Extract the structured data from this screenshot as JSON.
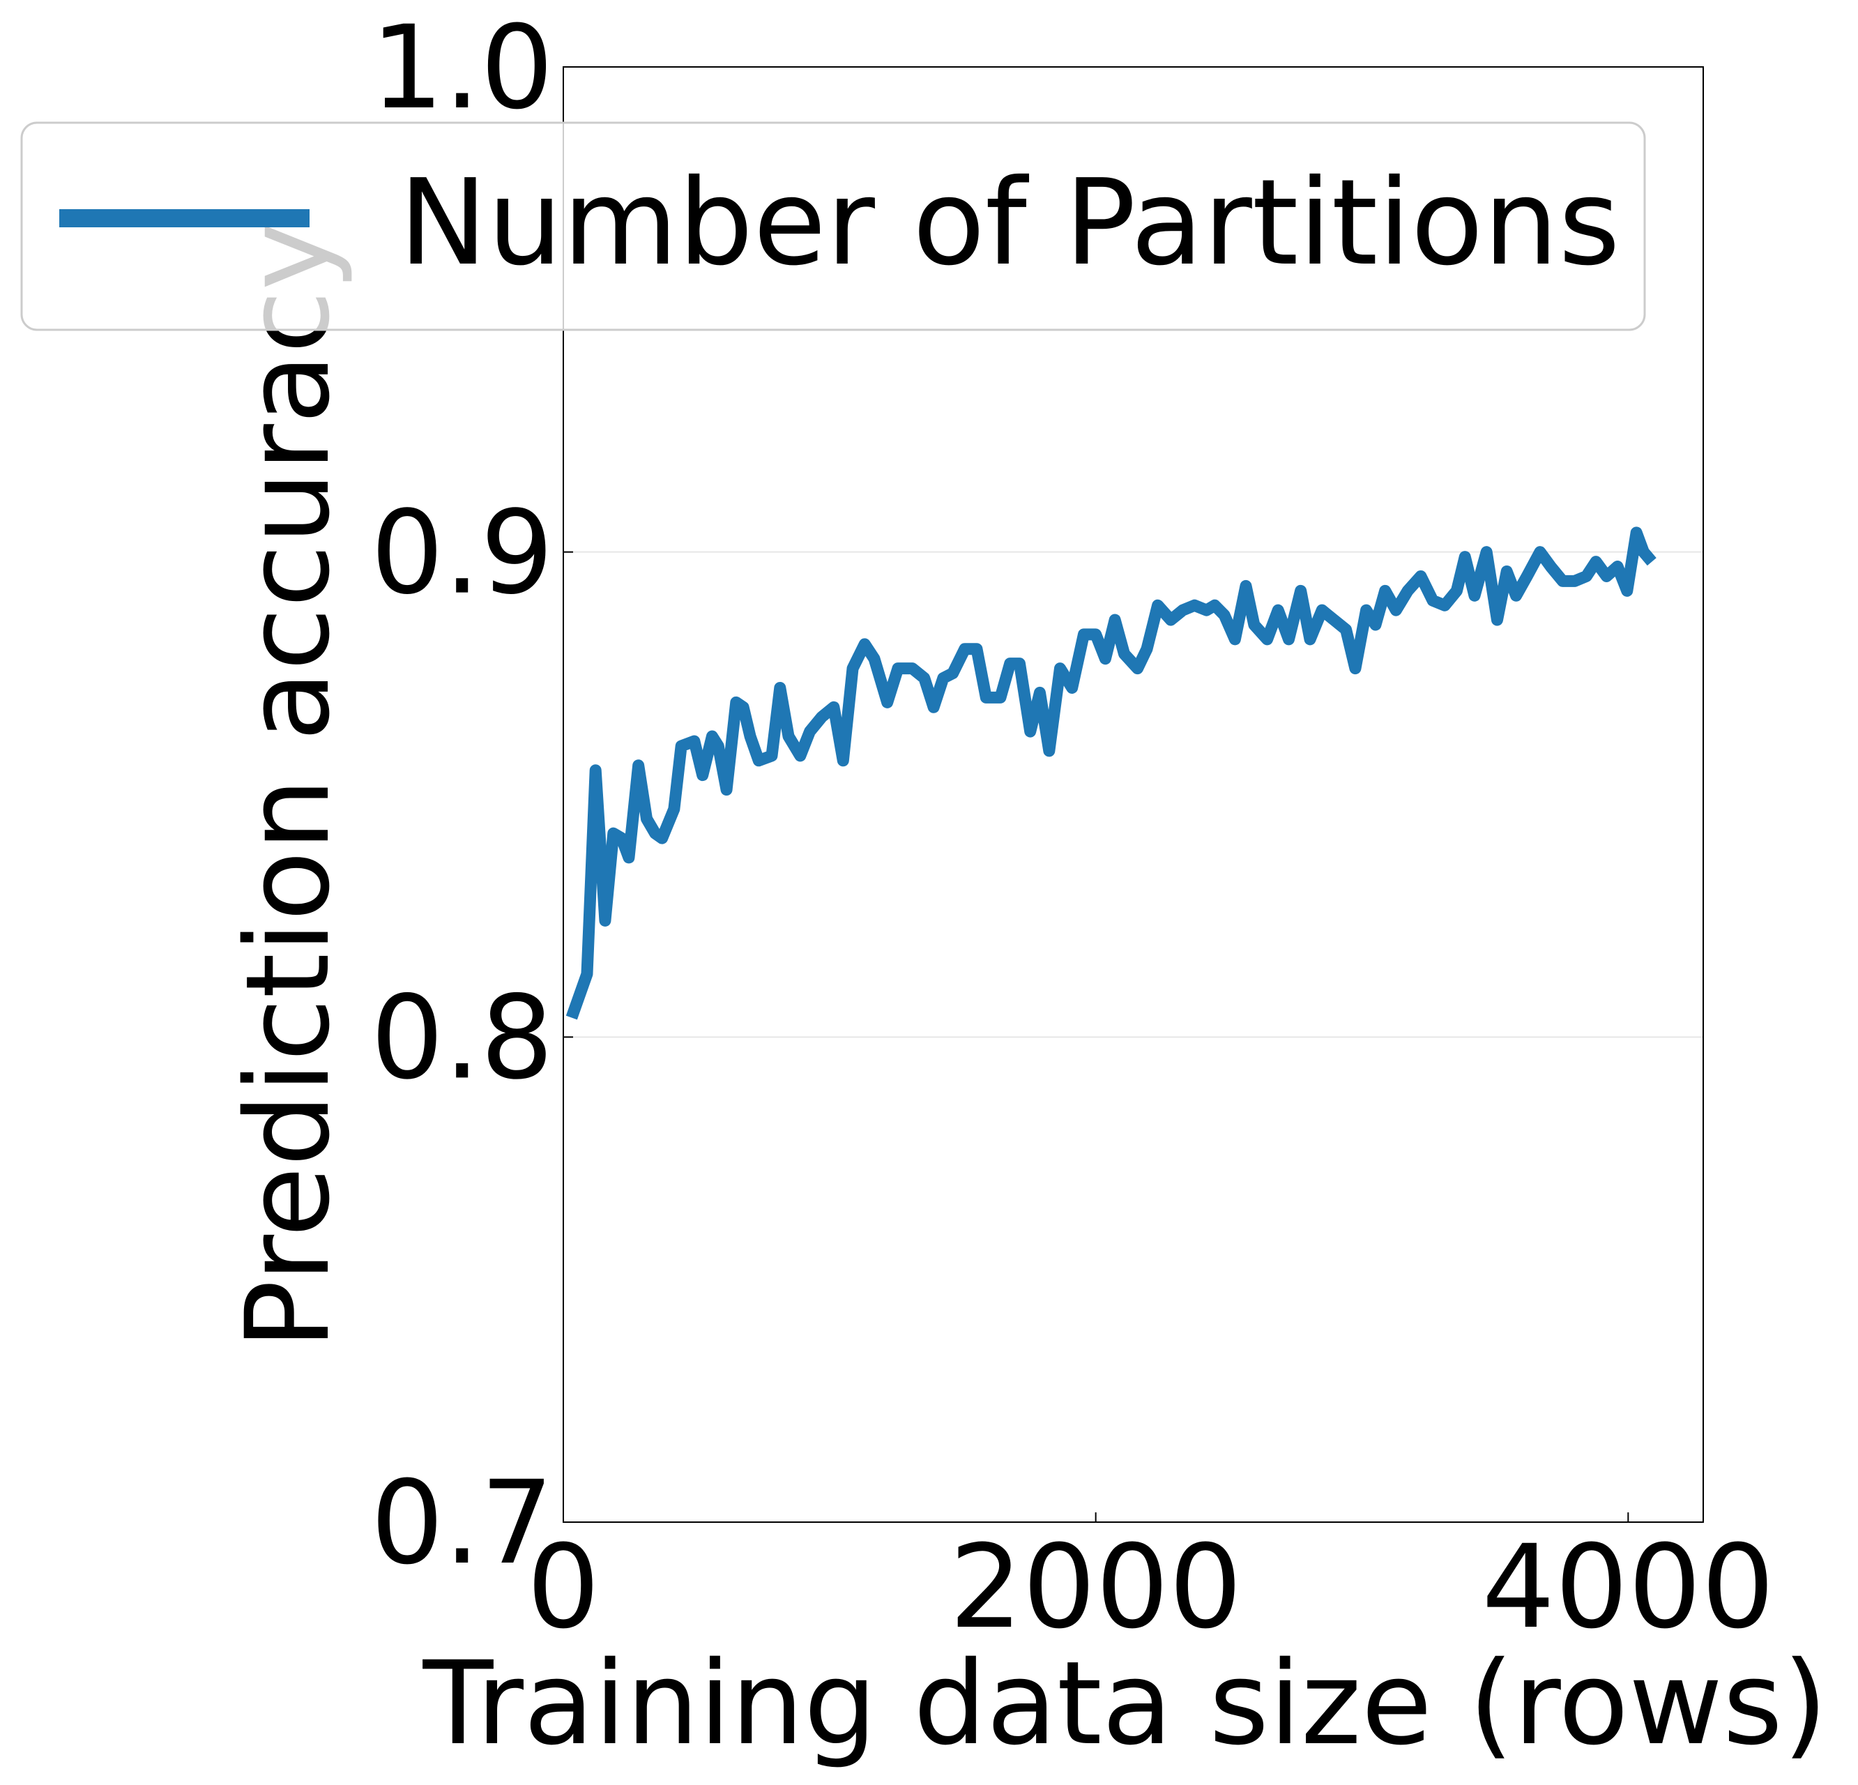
{
  "chart_data": {
    "type": "line",
    "xlabel": "Training data size (rows)",
    "ylabel": "Prediction accuracy",
    "x": [
      31,
      89,
      121,
      157,
      188,
      219,
      246,
      282,
      313,
      345,
      371,
      416,
      443,
      492,
      523,
      559,
      582,
      613,
      649,
      676,
      702,
      734,
      783,
      814,
      846,
      890,
      926,
      971,
      1016,
      1051,
      1087,
      1132,
      1168,
      1217,
      1257,
      1311,
      1356,
      1391,
      1427,
      1463,
      1508,
      1553,
      1588,
      1642,
      1678,
      1714,
      1754,
      1790,
      1825,
      1866,
      1911,
      1955,
      2000,
      2036,
      2072,
      2107,
      2157,
      2192,
      2233,
      2282,
      2327,
      2371,
      2416,
      2447,
      2483,
      2523,
      2564,
      2595,
      2644,
      2685,
      2725,
      2770,
      2805,
      2850,
      2895,
      2940,
      2975,
      3016,
      3051,
      3087,
      3128,
      3172,
      3221,
      3266,
      3311,
      3356,
      3387,
      3423,
      3468,
      3508,
      3544,
      3579,
      3620,
      3669,
      3709,
      3754,
      3799,
      3843,
      3879,
      3919,
      3960,
      3996,
      4031,
      4058,
      4089
    ],
    "series": [
      {
        "name": "Number of Partitions",
        "color": "#1f77b4",
        "values": [
          0.804,
          0.813,
          0.855,
          0.824,
          0.842,
          0.841,
          0.837,
          0.856,
          0.845,
          0.842,
          0.841,
          0.847,
          0.86,
          0.861,
          0.854,
          0.862,
          0.86,
          0.851,
          0.869,
          0.868,
          0.862,
          0.857,
          0.858,
          0.872,
          0.862,
          0.858,
          0.863,
          0.866,
          0.868,
          0.857,
          0.876,
          0.881,
          0.878,
          0.869,
          0.876,
          0.876,
          0.874,
          0.868,
          0.874,
          0.875,
          0.88,
          0.88,
          0.87,
          0.87,
          0.877,
          0.877,
          0.863,
          0.871,
          0.859,
          0.876,
          0.872,
          0.883,
          0.883,
          0.878,
          0.886,
          0.879,
          0.876,
          0.88,
          0.889,
          0.886,
          0.888,
          0.889,
          0.888,
          0.889,
          0.887,
          0.882,
          0.893,
          0.885,
          0.882,
          0.888,
          0.882,
          0.892,
          0.882,
          0.888,
          0.886,
          0.884,
          0.876,
          0.888,
          0.885,
          0.892,
          0.888,
          0.892,
          0.895,
          0.89,
          0.889,
          0.892,
          0.899,
          0.891,
          0.9,
          0.886,
          0.896,
          0.891,
          0.895,
          0.9,
          0.897,
          0.894,
          0.894,
          0.895,
          0.898,
          0.895,
          0.897,
          0.892,
          0.904,
          0.9,
          0.898
        ]
      }
    ],
    "xlim": [
      0,
      4282
    ],
    "xticks": [
      0,
      2000,
      4000
    ],
    "ylim": [
      0.7,
      1.0
    ],
    "yticks": [
      0.7,
      0.8,
      0.9,
      {
        "value": 1,
        "label": "1.0"
      }
    ],
    "grid": true,
    "legend": "upper left"
  }
}
